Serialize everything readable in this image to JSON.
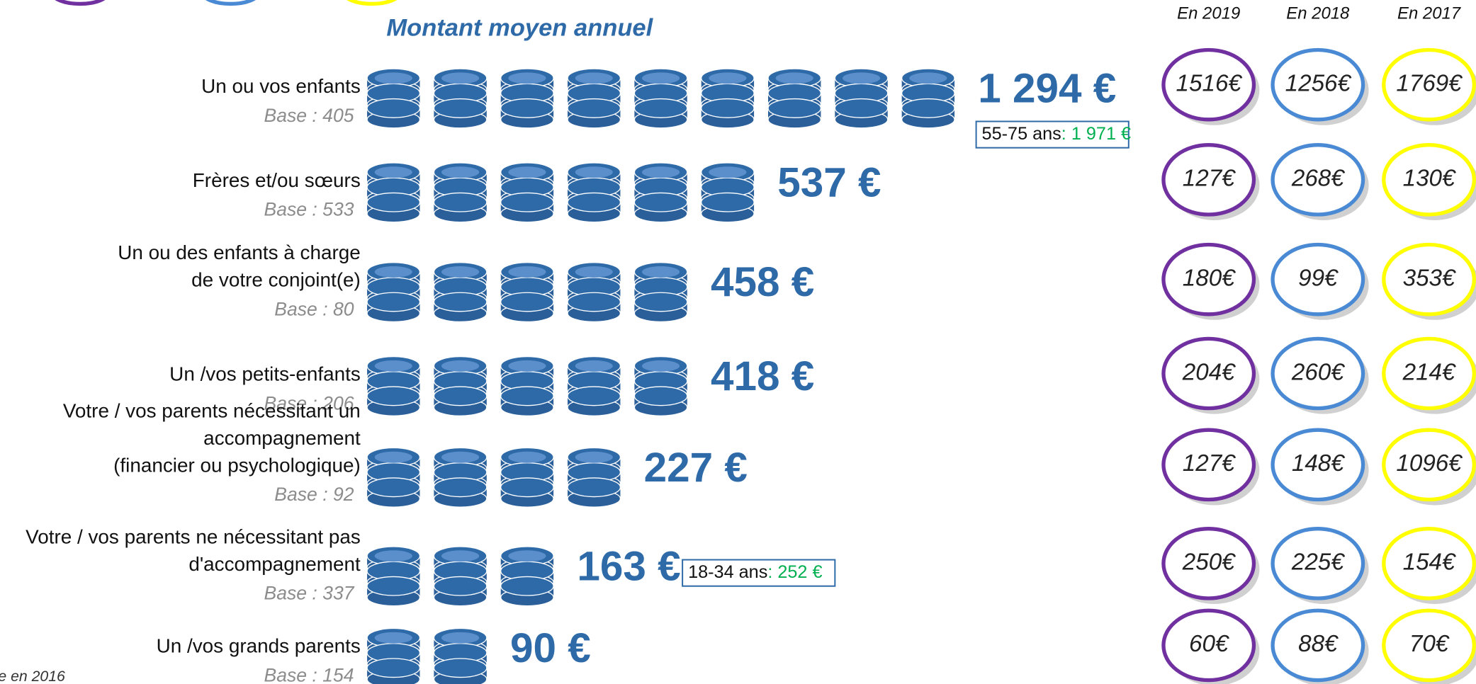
{
  "chart_data": {
    "type": "pictogram",
    "title": "Montant moyen annuel",
    "categories": [
      [
        "Un ou vos enfants"
      ],
      [
        "Frères et/ou sœurs"
      ],
      [
        "Un ou des enfants à charge",
        "de votre conjoint(e)"
      ],
      [
        "Un /vos petits-enfants"
      ],
      [
        "Votre / vos parents nécessitant un",
        "accompagnement",
        "(financier ou psychologique)"
      ],
      [
        "Votre / vos parents ne nécessitant pas",
        "d'accompagnement"
      ],
      [
        "Un /vos grands parents"
      ]
    ],
    "bases": [
      "Base : 405",
      "Base : 533",
      "Base : 80",
      "Base : 206",
      "Base : 92",
      "Base : 337",
      "Base : 154"
    ],
    "values": [
      1294,
      537,
      458,
      418,
      227,
      163,
      90
    ],
    "value_labels": [
      "1 294 €",
      "537 €",
      "458 €",
      "418 €",
      "227 €",
      "163 €",
      "90 €"
    ],
    "color": "#2e6aa8",
    "annotations": [
      {
        "label": "55-75 ans",
        "value": ": 1 971 €"
      },
      {
        "label": "18-34 ans",
        "value": ": 252 €"
      }
    ],
    "history": {
      "headers": [
        "En 2019",
        "En 2018",
        "En 2017"
      ],
      "colors": [
        "#7030a0",
        "#4a8ad4",
        "#ffff00"
      ],
      "rows": [
        [
          "1516€",
          "1256€",
          "1769€"
        ],
        [
          "127€",
          "268€",
          "130€"
        ],
        [
          "180€",
          "99€",
          "353€"
        ],
        [
          "204€",
          "260€",
          "214€"
        ],
        [
          "127€",
          "148€",
          "1096€"
        ],
        [
          "250€",
          "225€",
          "154€"
        ],
        [
          "60€",
          "88€",
          "70€"
        ]
      ]
    },
    "footnote": "e en 2016"
  }
}
